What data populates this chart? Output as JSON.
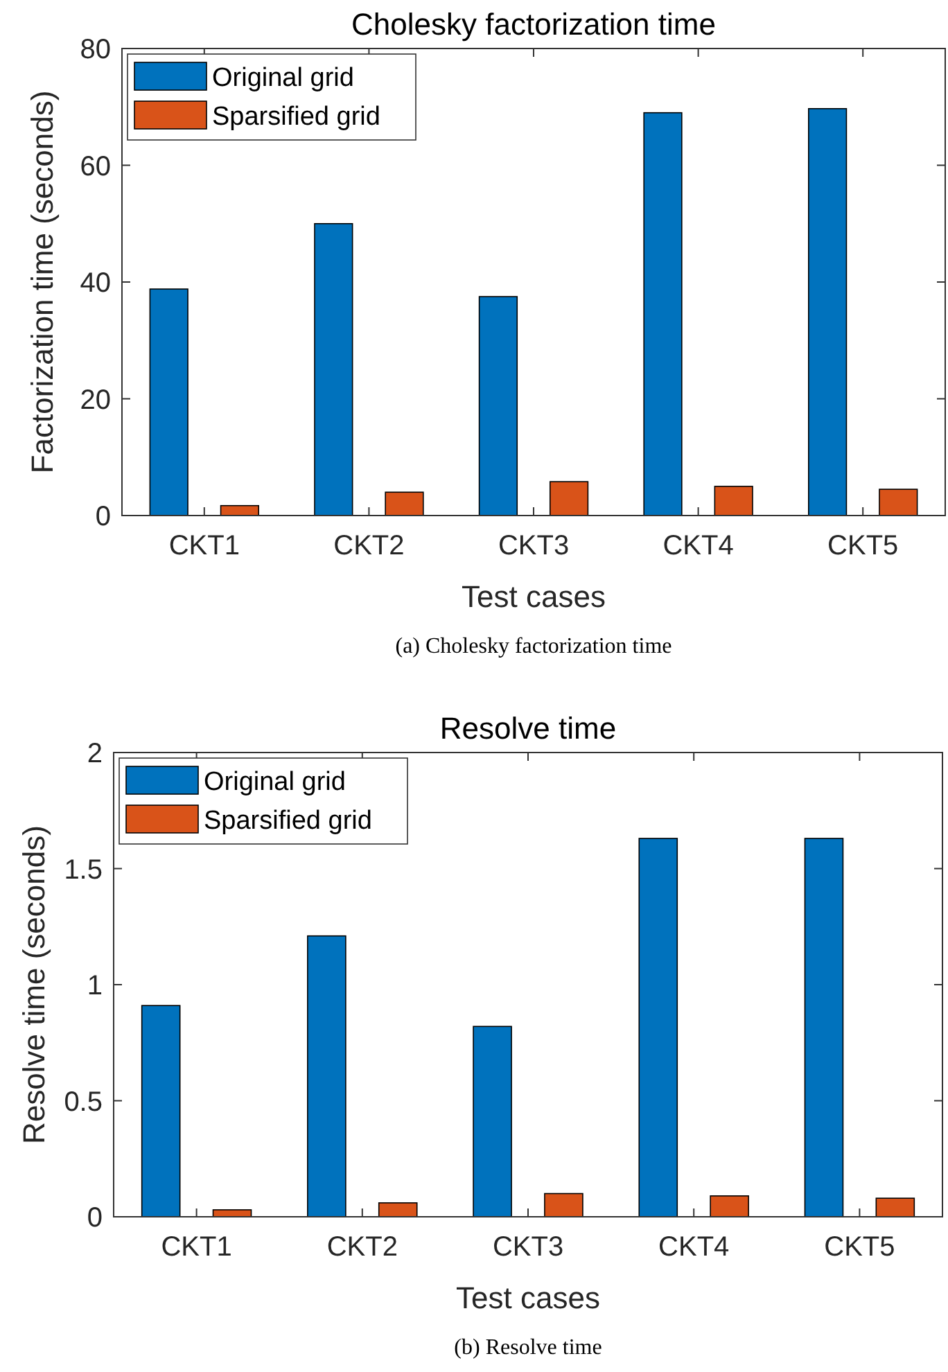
{
  "chart_data": [
    {
      "type": "bar",
      "title": "Cholesky factorization time",
      "xlabel": "Test cases",
      "ylabel": "Factorization time (seconds)",
      "categories": [
        "CKT1",
        "CKT2",
        "CKT3",
        "CKT4",
        "CKT5"
      ],
      "series": [
        {
          "name": "Original grid",
          "color": "#0072bd",
          "values": [
            38.8,
            50,
            37.5,
            69,
            69.7
          ]
        },
        {
          "name": "Sparsified grid",
          "color": "#d95319",
          "values": [
            1.7,
            4,
            5.8,
            5,
            4.5
          ]
        }
      ],
      "ylim": [
        0,
        80
      ],
      "yticks": [
        0,
        20,
        40,
        60,
        80
      ],
      "legend": "top left",
      "annotations": [
        "(a)  Cholesky factorization time"
      ]
    },
    {
      "type": "bar",
      "title": "Resolve time",
      "xlabel": "Test cases",
      "ylabel": "Resolve time (seconds)",
      "categories": [
        "CKT1",
        "CKT2",
        "CKT3",
        "CKT4",
        "CKT5"
      ],
      "series": [
        {
          "name": "Original grid",
          "color": "#0072bd",
          "values": [
            0.91,
            1.21,
            0.82,
            1.63,
            1.63
          ]
        },
        {
          "name": "Sparsified grid",
          "color": "#d95319",
          "values": [
            0.03,
            0.06,
            0.1,
            0.09,
            0.08
          ]
        }
      ],
      "ylim": [
        0,
        2
      ],
      "yticks": [
        0,
        0.5,
        1,
        1.5,
        2
      ],
      "legend": "top left",
      "annotations": [
        "(b)  Resolve time"
      ]
    }
  ]
}
